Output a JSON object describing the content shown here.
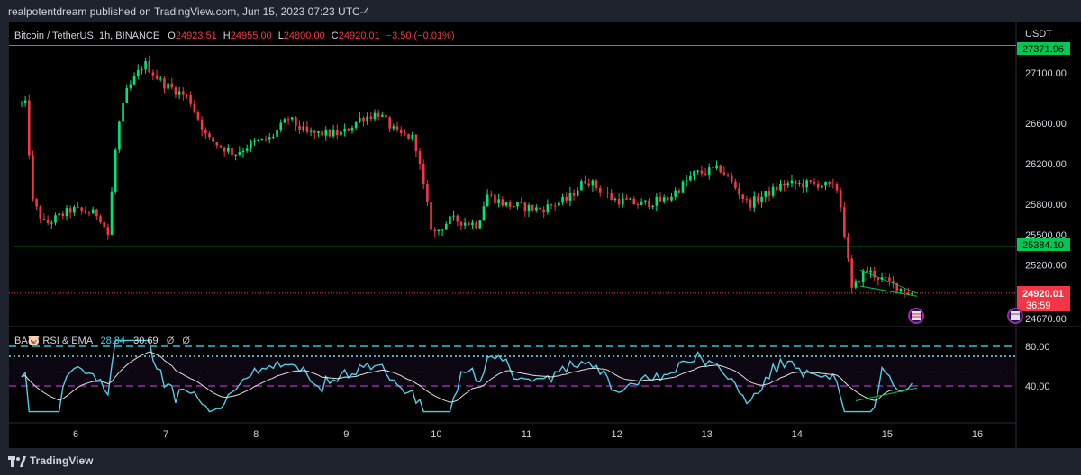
{
  "header": {
    "publisher_line": "realpotentdream published on TradingView.com, Jun 15, 2023 07:23 UTC-4"
  },
  "footer": {
    "brand": "TradingView"
  },
  "colors": {
    "up": "#26a69a",
    "up_bright": "#00e676",
    "down": "#f23645",
    "level_line": "#00c853",
    "rsi_line": "#4dd0e1",
    "ema_line": "#e0e0e0",
    "band_cyan": "#26c6da",
    "band_purple": "#9c27b0",
    "price_tag": "#f23645",
    "level_tag": "#00c853"
  },
  "symbol": {
    "name": "Bitcoin / TetherUS, 1h, BINANCE",
    "o_label": "O",
    "o_value": "24923.51",
    "h_label": "H",
    "h_value": "24955.00",
    "l_label": "L",
    "l_value": "24800.00",
    "c_label": "C",
    "c_value": "24920.01",
    "change": "−3.50 (−0.01%)"
  },
  "indicator": {
    "name": "BA🐷 RSI & EMA",
    "rsi_value": "28.84",
    "ema_value": "30.69",
    "extra1": "Ø",
    "extra2": "Ø"
  },
  "axis": {
    "currency": "USDT",
    "price_ticks": [
      "27100.00",
      "26600.00",
      "26200.00",
      "25800.00",
      "25500.00",
      "25200.00",
      "24670.00"
    ],
    "rsi_ticks": [
      "80.00",
      "40.00"
    ],
    "x_ticks": [
      "6",
      "7",
      "8",
      "9",
      "10",
      "11",
      "12",
      "13",
      "14",
      "15",
      "16"
    ]
  },
  "tags": {
    "resistance": "27371.96",
    "support": "25384.10",
    "last_price": "24920.01",
    "countdown": "36:59"
  },
  "chart_data": {
    "type": "candlestick",
    "symbol": "Bitcoin / TetherUS, 1h, BINANCE",
    "x_categories": [
      "6",
      "7",
      "8",
      "9",
      "10",
      "11",
      "12",
      "13",
      "14",
      "15",
      "16"
    ],
    "price_ylim": [
      24500,
      27500
    ],
    "horizontal_levels": [
      27371.96,
      25384.1
    ],
    "last_price": 24920.01,
    "price_path": [
      {
        "day": 5.4,
        "price": 26800
      },
      {
        "day": 5.5,
        "price": 26780
      },
      {
        "day": 5.55,
        "price": 25850
      },
      {
        "day": 5.7,
        "price": 25600
      },
      {
        "day": 6.0,
        "price": 25750
      },
      {
        "day": 6.3,
        "price": 25700
      },
      {
        "day": 6.4,
        "price": 25500
      },
      {
        "day": 6.5,
        "price": 26500
      },
      {
        "day": 6.6,
        "price": 26900
      },
      {
        "day": 6.8,
        "price": 27200
      },
      {
        "day": 7.0,
        "price": 27000
      },
      {
        "day": 7.3,
        "price": 26850
      },
      {
        "day": 7.5,
        "price": 26450
      },
      {
        "day": 7.8,
        "price": 26300
      },
      {
        "day": 8.0,
        "price": 26400
      },
      {
        "day": 8.2,
        "price": 26450
      },
      {
        "day": 8.4,
        "price": 26650
      },
      {
        "day": 8.6,
        "price": 26500
      },
      {
        "day": 9.0,
        "price": 26500
      },
      {
        "day": 9.2,
        "price": 26650
      },
      {
        "day": 9.4,
        "price": 26700
      },
      {
        "day": 9.6,
        "price": 26500
      },
      {
        "day": 9.8,
        "price": 26450
      },
      {
        "day": 10.0,
        "price": 25500
      },
      {
        "day": 10.2,
        "price": 25650
      },
      {
        "day": 10.5,
        "price": 25600
      },
      {
        "day": 10.6,
        "price": 25900
      },
      {
        "day": 10.8,
        "price": 25800
      },
      {
        "day": 11.2,
        "price": 25750
      },
      {
        "day": 11.5,
        "price": 25850
      },
      {
        "day": 11.7,
        "price": 26050
      },
      {
        "day": 12.0,
        "price": 25850
      },
      {
        "day": 12.3,
        "price": 25800
      },
      {
        "day": 12.6,
        "price": 25850
      },
      {
        "day": 12.9,
        "price": 26100
      },
      {
        "day": 13.2,
        "price": 26150
      },
      {
        "day": 13.5,
        "price": 25800
      },
      {
        "day": 13.9,
        "price": 26000
      },
      {
        "day": 14.3,
        "price": 26000
      },
      {
        "day": 14.5,
        "price": 25950
      },
      {
        "day": 14.65,
        "price": 24950
      },
      {
        "day": 14.8,
        "price": 25150
      },
      {
        "day": 15.0,
        "price": 25050
      },
      {
        "day": 15.3,
        "price": 24920
      }
    ],
    "rsi": {
      "ylim": [
        0,
        100
      ],
      "levels": [
        80,
        70,
        40
      ],
      "current_rsi": 28.84,
      "current_ema": 30.69
    }
  }
}
